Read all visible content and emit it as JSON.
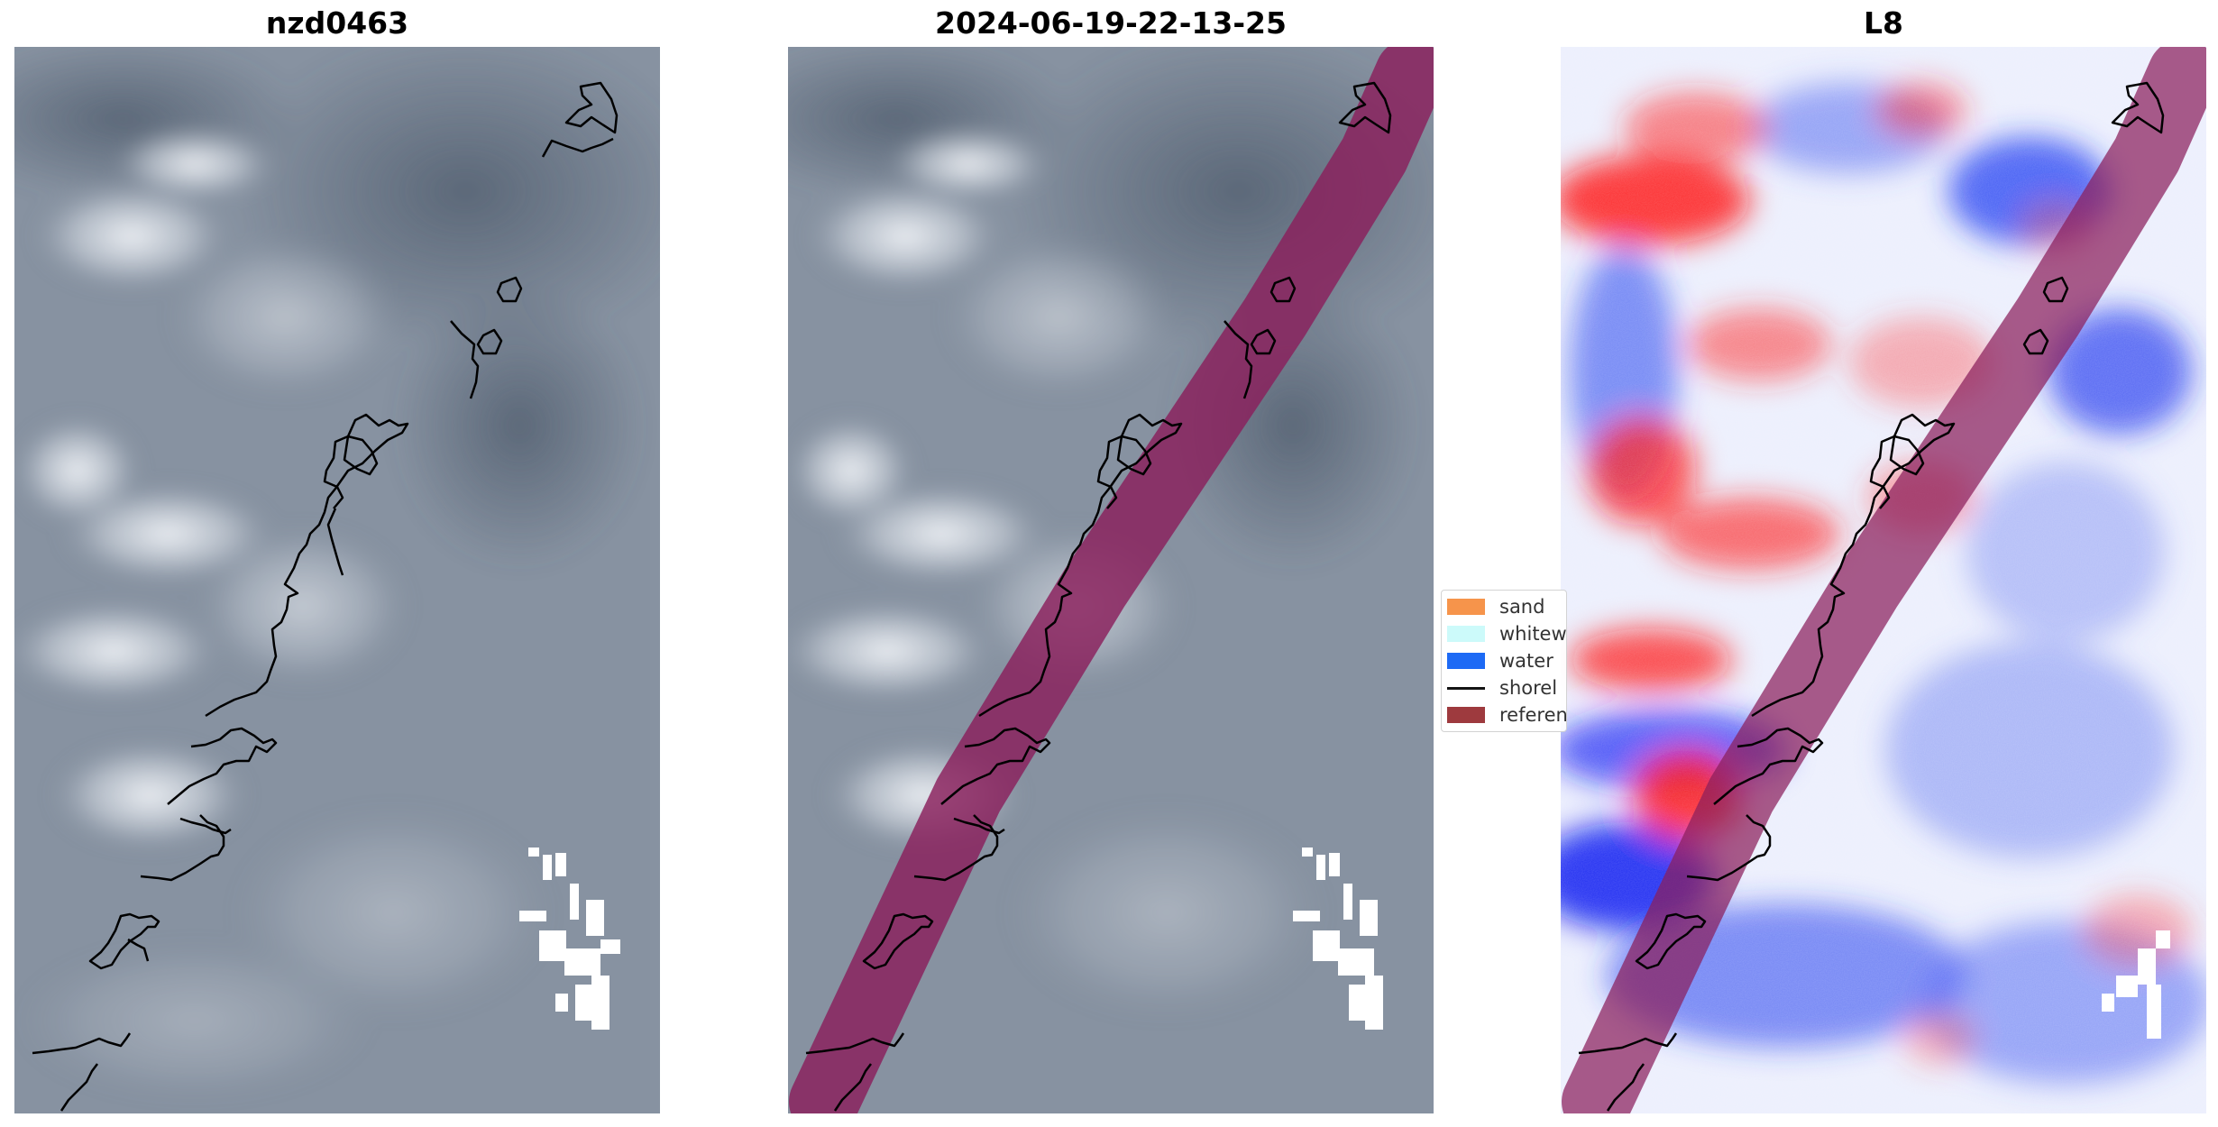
{
  "panels": {
    "left": {
      "title": "nzd0463"
    },
    "middle": {
      "title": "2024-06-19-22-13-25"
    },
    "right": {
      "title": "L8"
    }
  },
  "legend": {
    "items": [
      {
        "label": "sand",
        "color": "#f68b3c",
        "kind": "patch"
      },
      {
        "label": "whitew",
        "color": "#c8fafa",
        "kind": "patch"
      },
      {
        "label": "water",
        "color": "#0a5ef5",
        "kind": "patch"
      },
      {
        "label": "shorel",
        "color": "#000000",
        "kind": "line"
      },
      {
        "label": "referen",
        "color": "#962a2e",
        "kind": "patch"
      }
    ]
  },
  "colors": {
    "reference_band": "#8a1f5c",
    "shoreline": "#000000",
    "whitewater_pixels": "#ffffff",
    "index_positive": "#ff0000",
    "index_negative": "#0000ff"
  }
}
